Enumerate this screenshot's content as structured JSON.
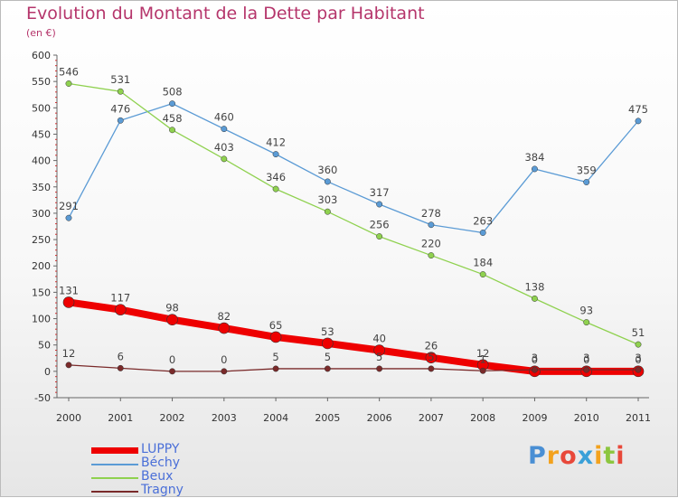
{
  "chart_data": {
    "type": "line",
    "title": "Evolution du Montant de la Dette par Habitant",
    "subtitle": "(en €)",
    "x": [
      "2000",
      "2001",
      "2002",
      "2003",
      "2004",
      "2005",
      "2006",
      "2007",
      "2008",
      "2009",
      "2010",
      "2011"
    ],
    "ylim": [
      -50,
      600
    ],
    "yticks": [
      -50,
      0,
      50,
      100,
      150,
      200,
      250,
      300,
      350,
      400,
      450,
      500,
      550,
      600
    ],
    "grid": false,
    "legend_position": "bottom-left",
    "series": [
      {
        "name": "LUPPY",
        "color": "#ee0000",
        "values": [
          131,
          117,
          98,
          82,
          65,
          53,
          40,
          26,
          12,
          0,
          0,
          0
        ],
        "labels": [
          "131",
          "117",
          "98",
          "82",
          "65",
          "53",
          "40",
          "26",
          "12",
          "0",
          "0",
          "0"
        ]
      },
      {
        "name": "Béchy",
        "color": "#5b9bd5",
        "values": [
          291,
          476,
          508,
          460,
          412,
          360,
          317,
          278,
          263,
          384,
          359,
          475
        ],
        "labels": [
          "291",
          "476",
          "508",
          "460",
          "412",
          "360",
          "317",
          "278",
          "263",
          "384",
          "359",
          "475"
        ]
      },
      {
        "name": "Beux",
        "color": "#8fd14f",
        "values": [
          546,
          531,
          458,
          403,
          346,
          303,
          256,
          220,
          184,
          138,
          93,
          51
        ],
        "labels": [
          "546",
          "531",
          "458",
          "403",
          "346",
          "303",
          "256",
          "220",
          "184",
          "138",
          "93",
          "51"
        ]
      },
      {
        "name": "Tragny",
        "color": "#7a2a2a",
        "values": [
          12,
          6,
          0,
          0,
          5,
          5,
          5,
          5,
          1,
          3,
          3,
          3
        ],
        "labels": [
          "12",
          "6",
          "0",
          "0",
          "5",
          "5",
          "5",
          "5",
          "1",
          "3",
          "3",
          "3"
        ]
      }
    ]
  },
  "logo": {
    "text": "Proxiti",
    "colors": [
      "#4a8fd4",
      "#f3a21d",
      "#e8483a",
      "#3aa0d8",
      "#f3a21d",
      "#8cc63f",
      "#e8483a"
    ]
  }
}
